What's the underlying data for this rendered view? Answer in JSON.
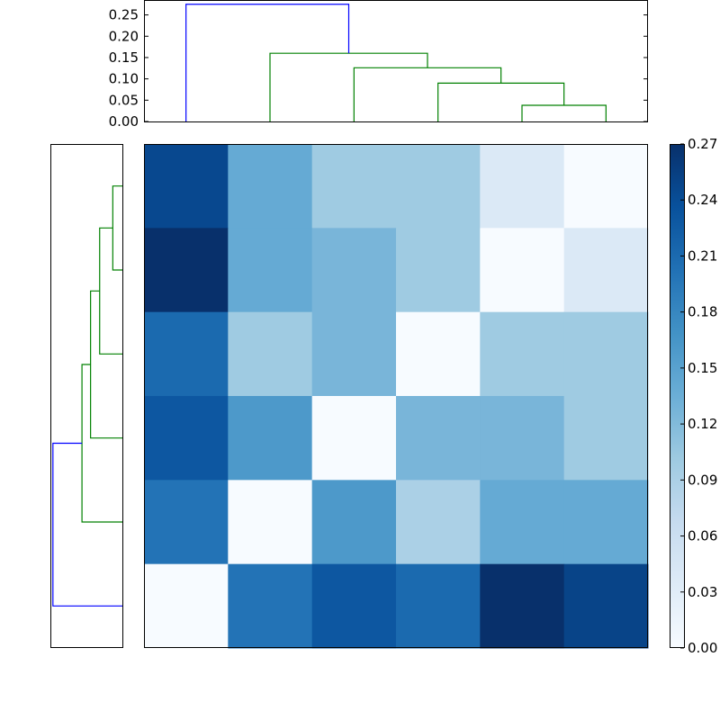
{
  "chart_data": [
    {
      "type": "dendrogram",
      "orientation": "top",
      "yticks": [
        "0.00",
        "0.05",
        "0.10",
        "0.15",
        "0.20",
        "0.25"
      ],
      "ylim": [
        0,
        0.285
      ],
      "leaf_count": 6,
      "merges": [
        {
          "left": 4.5,
          "right": 5.5,
          "height": 0.038,
          "color": "#008000"
        },
        {
          "left": 3.5,
          "right": 5.0,
          "height": 0.09,
          "color": "#008000"
        },
        {
          "left": 2.5,
          "right": 4.25,
          "height": 0.126,
          "color": "#008000"
        },
        {
          "left": 1.5,
          "right": 3.375,
          "height": 0.16,
          "color": "#008000"
        },
        {
          "left": 0.5,
          "right": 2.4375,
          "height": 0.275,
          "color": "#0000ff"
        }
      ]
    },
    {
      "type": "dendrogram",
      "orientation": "left",
      "leaf_count": 6,
      "merges": [
        {
          "left": 0.5,
          "right": 1.5,
          "height": 0.038,
          "color": "#008000"
        },
        {
          "left": 1.0,
          "right": 2.5,
          "height": 0.09,
          "color": "#008000"
        },
        {
          "left": 1.75,
          "right": 3.5,
          "height": 0.126,
          "color": "#008000"
        },
        {
          "left": 2.625,
          "right": 4.5,
          "height": 0.16,
          "color": "#008000"
        },
        {
          "left": 3.5625,
          "right": 5.5,
          "height": 0.275,
          "color": "#0000ff"
        }
      ]
    },
    {
      "type": "heatmap",
      "colormap": "Blues",
      "vmin": 0,
      "vmax": 0.27,
      "values": [
        [
          0.245,
          0.14,
          0.1,
          0.1,
          0.038,
          0.0
        ],
        [
          0.27,
          0.14,
          0.126,
          0.1,
          0.0,
          0.038
        ],
        [
          0.21,
          0.1,
          0.126,
          0.0,
          0.1,
          0.1
        ],
        [
          0.23,
          0.16,
          0.0,
          0.126,
          0.126,
          0.1
        ],
        [
          0.2,
          0.0,
          0.16,
          0.09,
          0.14,
          0.14
        ],
        [
          0.0,
          0.2,
          0.23,
          0.21,
          0.275,
          0.25
        ]
      ],
      "colorbar_ticks": [
        "0.00",
        "0.03",
        "0.06",
        "0.09",
        "0.12",
        "0.15",
        "0.18",
        "0.21",
        "0.24",
        "0.27"
      ]
    }
  ]
}
